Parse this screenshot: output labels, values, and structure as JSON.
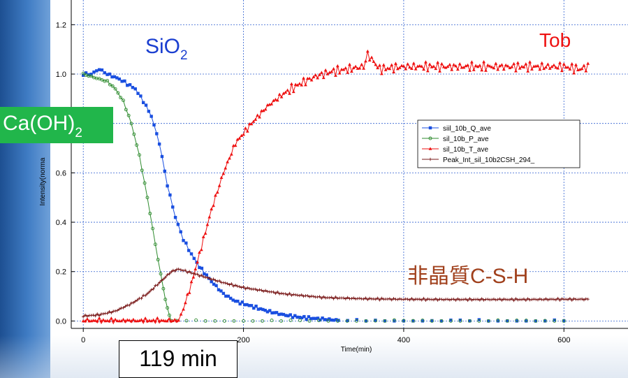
{
  "chart_data": {
    "type": "line",
    "title": "",
    "xlabel": "Time(min)",
    "ylabel": "Intensity(norma",
    "xlim": [
      -15,
      680
    ],
    "ylim": [
      -0.03,
      1.3
    ],
    "x_ticks": [
      0,
      200,
      400,
      600
    ],
    "y_ticks": [
      0.0,
      0.2,
      0.4,
      0.6,
      0.8,
      1.0,
      1.2
    ],
    "y_tick_labels": [
      "0.0",
      "0.2",
      "0.4",
      "0.6",
      "",
      "1.0",
      "1.2"
    ],
    "x_tick_labels": [
      "0",
      "200",
      "400",
      "600"
    ],
    "grid": true,
    "legend_position": "right",
    "series": [
      {
        "name": "siil_10b_Q_ave",
        "color": "#1a4fe0",
        "marker": "square",
        "points": [
          [
            0,
            1.0
          ],
          [
            10,
            1.0
          ],
          [
            20,
            1.02
          ],
          [
            30,
            1.0
          ],
          [
            45,
            0.98
          ],
          [
            55,
            0.96
          ],
          [
            65,
            0.94
          ],
          [
            75,
            0.89
          ],
          [
            85,
            0.83
          ],
          [
            95,
            0.72
          ],
          [
            105,
            0.55
          ],
          [
            115,
            0.42
          ],
          [
            125,
            0.33
          ],
          [
            135,
            0.27
          ],
          [
            145,
            0.22
          ],
          [
            160,
            0.16
          ],
          [
            175,
            0.11
          ],
          [
            190,
            0.08
          ],
          [
            210,
            0.06
          ],
          [
            230,
            0.04
          ],
          [
            250,
            0.025
          ],
          [
            270,
            0.015
          ],
          [
            290,
            0.01
          ],
          [
            310,
            0.005
          ],
          [
            330,
            0.0
          ],
          [
            350,
            0.0
          ],
          [
            400,
            0.0
          ],
          [
            450,
            0.0
          ],
          [
            500,
            0.0
          ],
          [
            550,
            0.0
          ],
          [
            600,
            0.0
          ]
        ]
      },
      {
        "name": "sil_10b_P_ave",
        "color": "#2e8b2e",
        "marker": "circle",
        "points": [
          [
            0,
            1.0
          ],
          [
            10,
            0.99
          ],
          [
            20,
            0.98
          ],
          [
            30,
            0.97
          ],
          [
            40,
            0.94
          ],
          [
            50,
            0.89
          ],
          [
            60,
            0.8
          ],
          [
            70,
            0.67
          ],
          [
            80,
            0.5
          ],
          [
            90,
            0.31
          ],
          [
            100,
            0.13
          ],
          [
            105,
            0.05
          ],
          [
            110,
            0.0
          ],
          [
            120,
            0.0
          ],
          [
            200,
            0.0
          ],
          [
            250,
            0.0
          ],
          [
            300,
            0.0
          ],
          [
            350,
            0.0
          ],
          [
            400,
            0.0
          ],
          [
            450,
            0.0
          ],
          [
            500,
            0.0
          ],
          [
            550,
            0.0
          ],
          [
            600,
            0.0
          ]
        ]
      },
      {
        "name": "sil_10b_T_ave",
        "color": "#ee1111",
        "marker": "triangle",
        "points": [
          [
            0,
            0.0
          ],
          [
            50,
            0.0
          ],
          [
            100,
            0.0
          ],
          [
            119,
            0.0
          ],
          [
            125,
            0.05
          ],
          [
            135,
            0.15
          ],
          [
            145,
            0.27
          ],
          [
            160,
            0.45
          ],
          [
            175,
            0.6
          ],
          [
            190,
            0.72
          ],
          [
            210,
            0.8
          ],
          [
            230,
            0.87
          ],
          [
            250,
            0.92
          ],
          [
            270,
            0.96
          ],
          [
            290,
            0.99
          ],
          [
            310,
            1.01
          ],
          [
            330,
            1.02
          ],
          [
            350,
            1.03
          ],
          [
            355,
            1.08
          ],
          [
            370,
            1.02
          ],
          [
            400,
            1.03
          ],
          [
            450,
            1.03
          ],
          [
            500,
            1.03
          ],
          [
            550,
            1.03
          ],
          [
            600,
            1.03
          ],
          [
            620,
            1.02
          ],
          [
            630,
            1.03
          ]
        ]
      },
      {
        "name": "Peak_Int_sil_10b2CSH_294_",
        "color": "#7a1a1a",
        "marker": "plus",
        "points": [
          [
            0,
            0.02
          ],
          [
            20,
            0.025
          ],
          [
            40,
            0.04
          ],
          [
            60,
            0.07
          ],
          [
            80,
            0.11
          ],
          [
            100,
            0.17
          ],
          [
            110,
            0.2
          ],
          [
            119,
            0.21
          ],
          [
            130,
            0.2
          ],
          [
            150,
            0.18
          ],
          [
            175,
            0.155
          ],
          [
            200,
            0.135
          ],
          [
            250,
            0.11
          ],
          [
            300,
            0.095
          ],
          [
            350,
            0.09
          ],
          [
            400,
            0.088
          ],
          [
            450,
            0.087
          ],
          [
            500,
            0.087
          ],
          [
            550,
            0.087
          ],
          [
            600,
            0.088
          ],
          [
            630,
            0.088
          ]
        ]
      }
    ]
  },
  "annotations": {
    "sio2_main": "SiO",
    "sio2_sub": "2",
    "tob": "Tob",
    "caoh_main": "Ca(OH)",
    "caoh_sub": "2",
    "csh": "非晶質C-S-H",
    "time_box": "119 min"
  }
}
